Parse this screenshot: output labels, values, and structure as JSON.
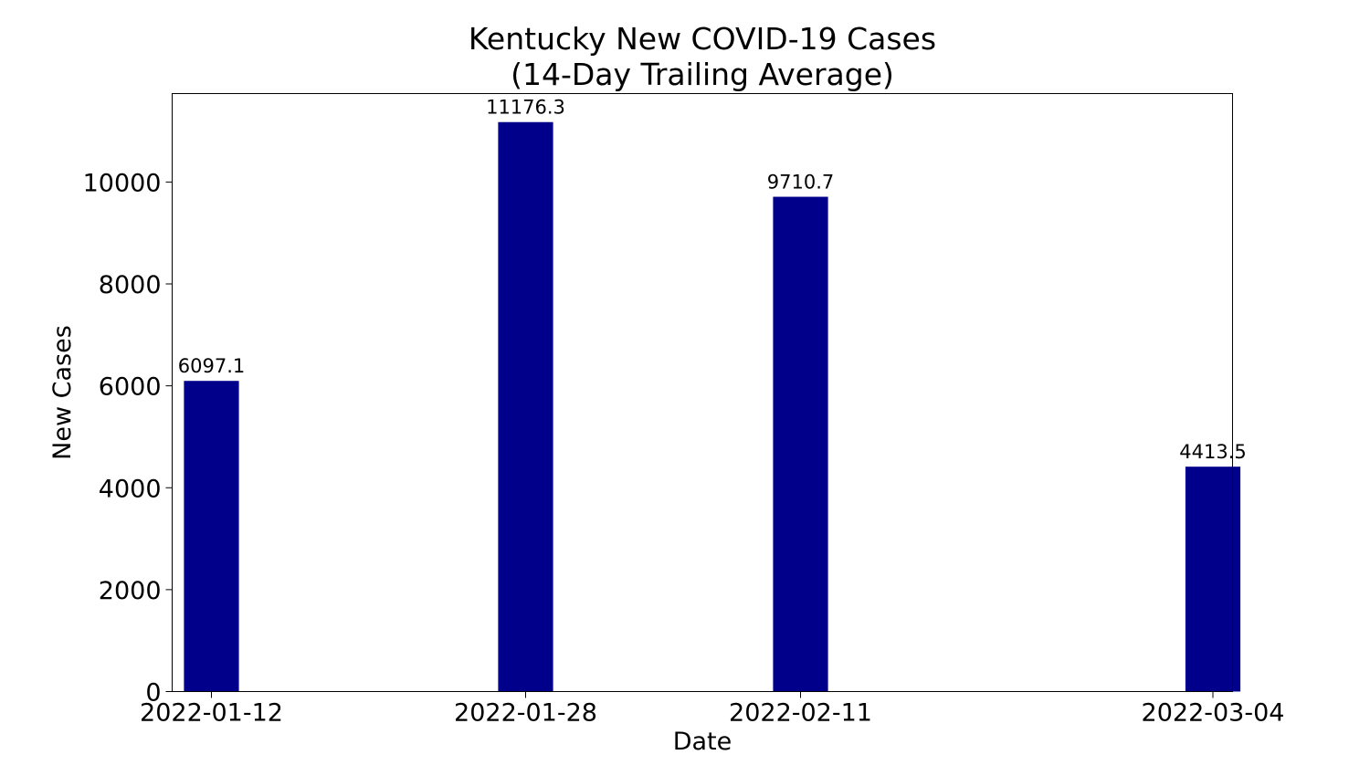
{
  "chart_data": {
    "type": "bar",
    "title_lines": [
      "Kentucky New COVID-19 Cases",
      "(14-Day Trailing Average)"
    ],
    "xlabel": "Date",
    "ylabel": "New Cases",
    "x": [
      "2022-01-12",
      "2022-01-28",
      "2022-02-11",
      "2022-03-04"
    ],
    "values": [
      6097.1,
      11176.3,
      9710.7,
      4413.5
    ],
    "data_labels": [
      "6097.1",
      "11176.3",
      "9710.7",
      "4413.5"
    ],
    "y_ticks": [
      0,
      2000,
      4000,
      6000,
      8000,
      10000
    ],
    "ylim": [
      0,
      11736
    ],
    "xlim": [
      "2022-01-10",
      "2022-03-05"
    ],
    "grid": false,
    "bar_color": "#00008b"
  }
}
